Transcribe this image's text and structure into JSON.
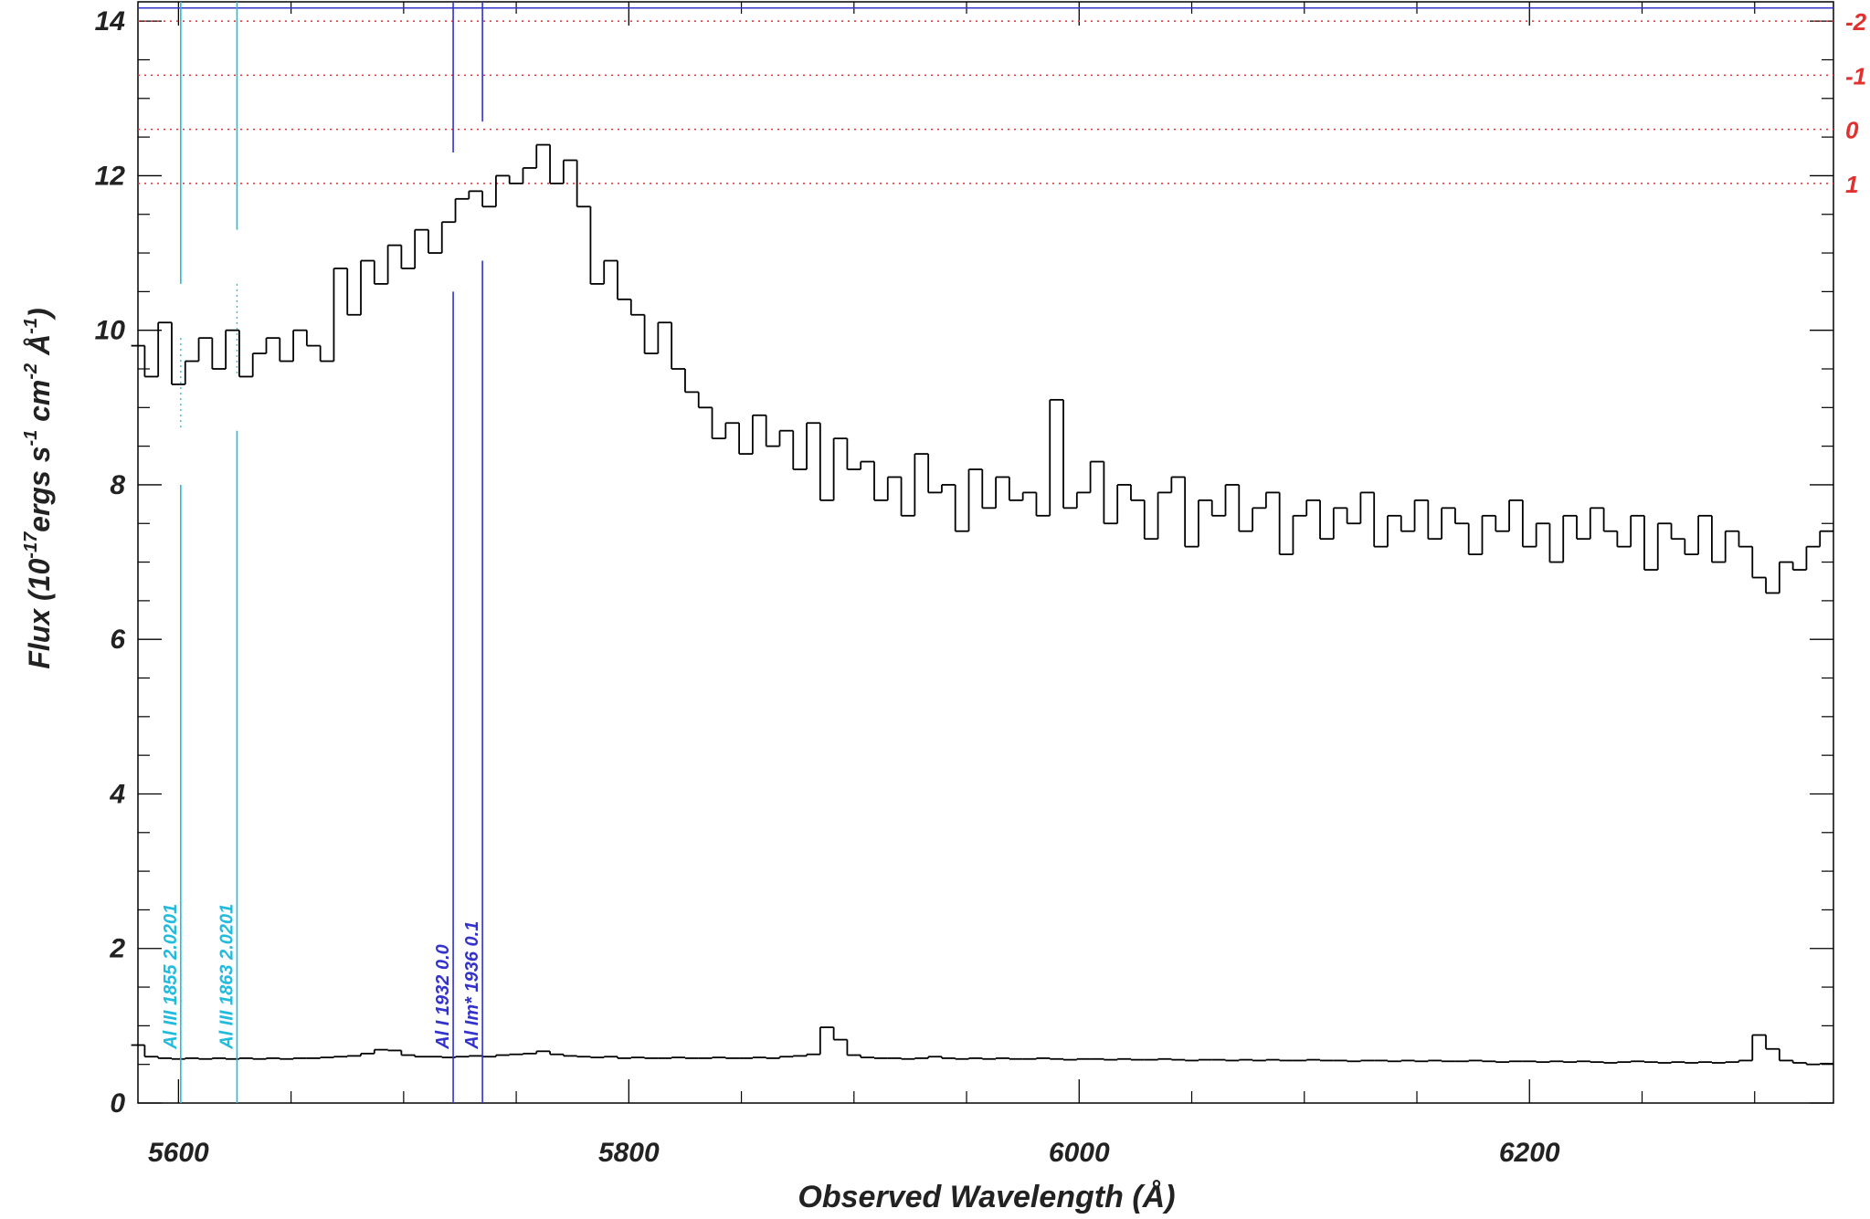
{
  "chart_data": {
    "type": "step",
    "x_label": "Observed Wavelength (Å)",
    "y_label_parts": [
      {
        "text": "Flux (10"
      },
      {
        "text": "-17",
        "sup": true
      },
      {
        "text": "ergs s"
      },
      {
        "text": "-1",
        "sup": true
      },
      {
        "text": " cm"
      },
      {
        "text": "-2",
        "sup": true
      },
      {
        "text": " Å"
      },
      {
        "text": "-1",
        "sup": true
      },
      {
        "text": ")"
      }
    ],
    "xlim": [
      5582,
      6335
    ],
    "ylim": [
      0,
      14.25
    ],
    "xticks": [
      5600,
      5800,
      6000,
      6200
    ],
    "xminor": [
      5650,
      5700,
      5750,
      5850,
      5900,
      5950,
      6050,
      6100,
      6150,
      6250,
      6300
    ],
    "yticks": [
      0,
      2,
      4,
      6,
      8,
      10,
      12,
      14
    ],
    "yminor": [
      0.5,
      1,
      1.5,
      2.5,
      3,
      3.5,
      4.5,
      5,
      5.5,
      6.5,
      7,
      7.5,
      8.5,
      9,
      9.5,
      10.5,
      11,
      11.5,
      12.5,
      13,
      13.5
    ],
    "x": [
      5582,
      5588,
      5594,
      5600,
      5606,
      5612,
      5618,
      5624,
      5630,
      5636,
      5642,
      5648,
      5654,
      5660,
      5666,
      5672,
      5678,
      5684,
      5690,
      5696,
      5702,
      5708,
      5714,
      5720,
      5726,
      5732,
      5738,
      5744,
      5750,
      5756,
      5762,
      5768,
      5774,
      5780,
      5786,
      5792,
      5798,
      5804,
      5810,
      5816,
      5822,
      5828,
      5834,
      5840,
      5846,
      5852,
      5858,
      5864,
      5870,
      5876,
      5882,
      5888,
      5894,
      5900,
      5906,
      5912,
      5918,
      5924,
      5930,
      5936,
      5942,
      5948,
      5954,
      5960,
      5966,
      5972,
      5978,
      5984,
      5990,
      5996,
      6002,
      6008,
      6014,
      6020,
      6026,
      6032,
      6038,
      6044,
      6050,
      6056,
      6062,
      6068,
      6074,
      6080,
      6086,
      6092,
      6098,
      6104,
      6110,
      6116,
      6122,
      6128,
      6134,
      6140,
      6146,
      6152,
      6158,
      6164,
      6170,
      6176,
      6182,
      6188,
      6194,
      6200,
      6206,
      6212,
      6218,
      6224,
      6230,
      6236,
      6242,
      6248,
      6254,
      6260,
      6266,
      6272,
      6278,
      6284,
      6290,
      6296,
      6302,
      6308,
      6314,
      6320,
      6326,
      6332
    ],
    "series": [
      {
        "color": "#000000",
        "values": [
          9.8,
          9.4,
          10.1,
          9.3,
          9.6,
          9.9,
          9.5,
          10.0,
          9.4,
          9.7,
          9.9,
          9.6,
          10.0,
          9.8,
          9.6,
          10.8,
          10.2,
          10.9,
          10.6,
          11.1,
          10.8,
          11.3,
          11.0,
          11.4,
          11.7,
          11.8,
          11.6,
          12.0,
          11.9,
          12.1,
          12.4,
          11.9,
          12.2,
          11.6,
          10.6,
          10.9,
          10.4,
          10.2,
          9.7,
          10.1,
          9.5,
          9.2,
          9.0,
          8.6,
          8.8,
          8.4,
          8.9,
          8.5,
          8.7,
          8.2,
          8.8,
          7.8,
          8.6,
          8.2,
          8.3,
          7.8,
          8.1,
          7.6,
          8.4,
          7.9,
          8.0,
          7.4,
          8.2,
          7.7,
          8.1,
          7.8,
          7.9,
          7.6,
          9.1,
          7.7,
          7.9,
          8.3,
          7.5,
          8.0,
          7.8,
          7.3,
          7.9,
          8.1,
          7.2,
          7.8,
          7.6,
          8.0,
          7.4,
          7.7,
          7.9,
          7.1,
          7.6,
          7.8,
          7.3,
          7.7,
          7.5,
          7.9,
          7.2,
          7.6,
          7.4,
          7.8,
          7.3,
          7.7,
          7.5,
          7.1,
          7.6,
          7.4,
          7.8,
          7.2,
          7.5,
          7.0,
          7.6,
          7.3,
          7.7,
          7.4,
          7.2,
          7.6,
          6.9,
          7.5,
          7.3,
          7.1,
          7.6,
          7.0,
          7.4,
          7.2,
          6.8,
          6.6,
          7.0,
          6.9,
          7.2,
          7.4
        ]
      },
      {
        "color": "#000000",
        "values": [
          0.75,
          0.6,
          0.58,
          0.57,
          0.58,
          0.57,
          0.58,
          0.57,
          0.58,
          0.57,
          0.58,
          0.57,
          0.58,
          0.58,
          0.59,
          0.6,
          0.61,
          0.64,
          0.69,
          0.68,
          0.62,
          0.6,
          0.6,
          0.59,
          0.6,
          0.61,
          0.6,
          0.62,
          0.63,
          0.64,
          0.67,
          0.63,
          0.61,
          0.6,
          0.59,
          0.6,
          0.58,
          0.59,
          0.58,
          0.58,
          0.59,
          0.58,
          0.58,
          0.59,
          0.58,
          0.58,
          0.59,
          0.58,
          0.6,
          0.61,
          0.63,
          0.98,
          0.82,
          0.62,
          0.59,
          0.58,
          0.58,
          0.57,
          0.58,
          0.6,
          0.58,
          0.57,
          0.58,
          0.57,
          0.58,
          0.57,
          0.57,
          0.58,
          0.57,
          0.56,
          0.57,
          0.57,
          0.56,
          0.57,
          0.56,
          0.56,
          0.57,
          0.56,
          0.55,
          0.56,
          0.56,
          0.55,
          0.56,
          0.55,
          0.56,
          0.55,
          0.55,
          0.56,
          0.55,
          0.55,
          0.54,
          0.55,
          0.55,
          0.54,
          0.55,
          0.54,
          0.55,
          0.54,
          0.54,
          0.55,
          0.54,
          0.53,
          0.54,
          0.54,
          0.53,
          0.54,
          0.53,
          0.54,
          0.53,
          0.52,
          0.53,
          0.54,
          0.53,
          0.52,
          0.53,
          0.52,
          0.53,
          0.52,
          0.53,
          0.55,
          0.88,
          0.7,
          0.55,
          0.52,
          0.5,
          0.51
        ]
      }
    ],
    "line_markers": [
      {
        "x": 5601,
        "label": "Al III 1855 2.0201",
        "color": "#22bbdd",
        "dotted_gap": true
      },
      {
        "x": 5626,
        "label": "Al III 1863 2.0201",
        "color": "#22bbdd",
        "dotted_gap": true
      },
      {
        "x": 5722,
        "label": "Al I 1932 0.0",
        "color": "#3333cc",
        "dotted_gap": false
      },
      {
        "x": 5735,
        "label": "Al Im* 1936 0.1",
        "color": "#3333cc",
        "dotted_gap": false
      }
    ],
    "ref_lines": {
      "color": "#e03030",
      "lines": [
        {
          "value": 14.0,
          "label": "-2"
        },
        {
          "value": 13.3,
          "label": "-1"
        },
        {
          "value": 12.6,
          "label": "0"
        },
        {
          "value": 11.9,
          "label": "1"
        }
      ]
    },
    "top_line": {
      "value": 14.17,
      "color": "#3333cc"
    }
  }
}
